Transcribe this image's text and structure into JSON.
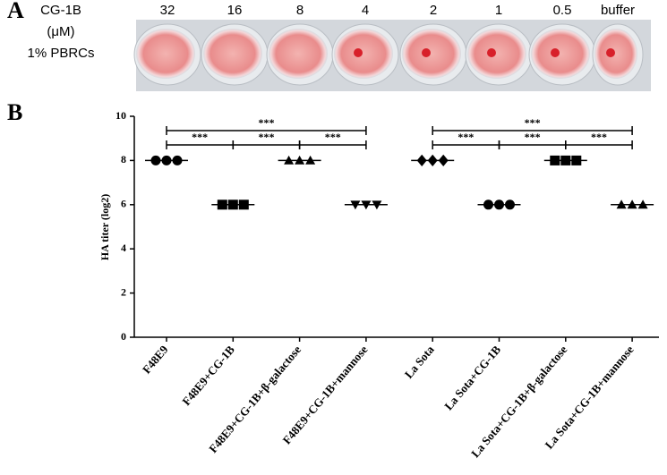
{
  "panel_a": {
    "label": "A",
    "row_labels": [
      "CG-1B",
      "(μM)",
      "1% PBRCs"
    ],
    "concentrations": [
      "32",
      "16",
      "8",
      "4",
      "2",
      "1",
      "0.5",
      "buffer"
    ]
  },
  "chart_data": {
    "type": "dot",
    "panel_label": "B",
    "ylabel": "HA titer (log2)",
    "categories": [
      "F48E9",
      "F48E9+CG-1B",
      "F48E9+CG-1B+β-galactose",
      "F48E9+CG-1B+mannose",
      "La Sota",
      "La Sota+CG-1B",
      "La Sota+CG-1B+β-galactose",
      "La Sota+CG-1B+mannose"
    ],
    "values": [
      [
        8,
        8,
        8
      ],
      [
        6,
        6,
        6
      ],
      [
        8,
        8,
        8
      ],
      [
        6,
        6,
        6
      ],
      [
        8,
        8,
        8
      ],
      [
        6,
        6,
        6
      ],
      [
        8,
        8,
        8
      ],
      [
        6,
        6,
        6
      ]
    ],
    "markers": [
      "circle",
      "square",
      "triangle",
      "triangle-down",
      "diamond",
      "circle",
      "square",
      "triangle"
    ],
    "color": "#000000",
    "ylim": [
      0,
      10
    ],
    "yticks": [
      0,
      2,
      4,
      6,
      8,
      10
    ],
    "brackets": [
      {
        "from": 0,
        "to": 3,
        "label": "***"
      },
      {
        "from": 0,
        "to": 1,
        "label": "***"
      },
      {
        "from": 1,
        "to": 2,
        "label": "***"
      },
      {
        "from": 2,
        "to": 3,
        "label": "***"
      },
      {
        "from": 4,
        "to": 7,
        "label": "***"
      },
      {
        "from": 4,
        "to": 5,
        "label": "***"
      },
      {
        "from": 5,
        "to": 6,
        "label": "***"
      },
      {
        "from": 6,
        "to": 7,
        "label": "***"
      }
    ]
  }
}
